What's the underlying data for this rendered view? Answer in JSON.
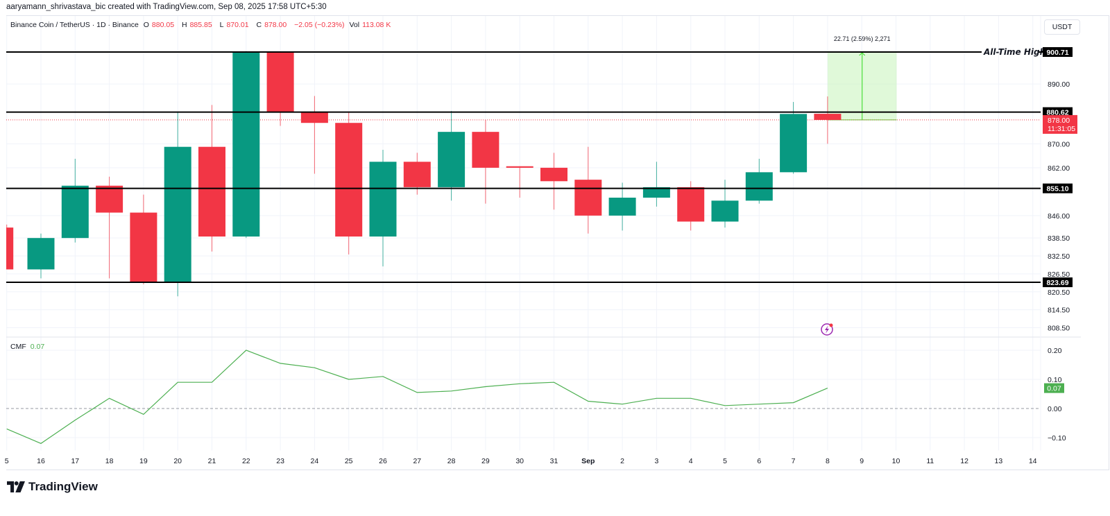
{
  "header": {
    "credit": "aaryamann_shrivastava_bic created with TradingView.com, Sep 08, 2025 17:58 UTC+5:30"
  },
  "legend": {
    "symbol": "Binance Coin / TetherUS · 1D · Binance",
    "open_label": "O",
    "open": "880.05",
    "high_label": "H",
    "high": "885.85",
    "low_label": "L",
    "low": "870.01",
    "close_label": "C",
    "close": "878.00",
    "change": "−2.05 (−0.23%)",
    "vol_label": "Vol",
    "volume": "113.08 K"
  },
  "currency_button": "USDT",
  "annotations": {
    "ath_label": "All-Time High",
    "measure_label": "22.71 (2.59%) 2,271"
  },
  "price_axis": {
    "ticks": [
      "890.00",
      "870.00",
      "862.00",
      "846.00",
      "838.50",
      "832.50",
      "826.50",
      "820.50",
      "814.50",
      "808.50"
    ],
    "levels": [
      "900.71",
      "880.62",
      "855.10",
      "823.69"
    ],
    "current_price": "878.00",
    "countdown": "11:31:05"
  },
  "cmf_axis": {
    "ticks": [
      "0.20",
      "0.10",
      "0.00",
      "−0.10"
    ],
    "current": "0.07"
  },
  "cmf_legend": {
    "name": "CMF",
    "value": "0.07"
  },
  "time_axis": [
    "5",
    "16",
    "17",
    "18",
    "19",
    "20",
    "21",
    "22",
    "23",
    "24",
    "25",
    "26",
    "27",
    "28",
    "29",
    "30",
    "31",
    "Sep",
    "2",
    "3",
    "4",
    "5",
    "6",
    "7",
    "8",
    "9",
    "10",
    "11",
    "12",
    "13",
    "14"
  ],
  "footer": {
    "brand": "TradingView"
  },
  "colors": {
    "up": "#089981",
    "down": "#f23645",
    "cmf_line": "#4caf50",
    "measure_fill": "#ccf5c0",
    "measure_line": "#4cde3a",
    "level_line": "#000000"
  },
  "chart_data": [
    {
      "type": "candlestick",
      "title": "Binance Coin / TetherUS · 1D · Binance",
      "xlabel": "",
      "ylabel": "USDT",
      "ylim": [
        806,
        905
      ],
      "categories": [
        "Aug 15",
        "Aug 16",
        "Aug 17",
        "Aug 18",
        "Aug 19",
        "Aug 20",
        "Aug 21",
        "Aug 22",
        "Aug 23",
        "Aug 24",
        "Aug 25",
        "Aug 26",
        "Aug 27",
        "Aug 28",
        "Aug 29",
        "Aug 30",
        "Aug 31",
        "Sep 1",
        "Sep 2",
        "Sep 3",
        "Sep 4",
        "Sep 5",
        "Sep 6",
        "Sep 7",
        "Sep 8"
      ],
      "ohlc": [
        [
          842,
          843,
          828,
          828
        ],
        [
          828,
          840,
          825,
          838.5
        ],
        [
          838.5,
          865,
          837,
          856
        ],
        [
          856,
          859,
          825,
          847
        ],
        [
          847,
          853,
          823,
          823.7
        ],
        [
          823.7,
          880.6,
          819,
          869
        ],
        [
          869,
          883,
          834,
          839
        ],
        [
          839,
          901,
          838.5,
          900.7
        ],
        [
          900.7,
          900.7,
          876,
          880.6
        ],
        [
          880.6,
          886,
          860,
          877
        ],
        [
          877,
          880.6,
          833,
          839
        ],
        [
          839,
          868,
          829,
          864
        ],
        [
          864,
          867,
          853,
          855.5
        ],
        [
          855.5,
          881,
          851,
          874
        ],
        [
          874,
          878,
          850,
          862
        ],
        [
          862.5,
          862.5,
          852,
          862
        ],
        [
          862,
          867,
          848,
          857.5
        ],
        [
          858,
          869,
          840,
          846
        ],
        [
          846,
          857,
          841,
          852
        ],
        [
          852,
          864,
          849,
          855.5
        ],
        [
          855.5,
          857.5,
          841,
          844
        ],
        [
          844,
          858,
          842,
          851
        ],
        [
          851,
          865,
          850,
          860.5
        ],
        [
          860.5,
          884,
          860,
          880
        ],
        [
          880.05,
          885.85,
          870.01,
          878.0
        ]
      ],
      "horizontal_levels": [
        {
          "value": 900.71,
          "label": "All-Time High"
        },
        {
          "value": 880.62
        },
        {
          "value": 855.1
        },
        {
          "value": 823.69
        }
      ],
      "measure": {
        "from": 878.0,
        "to": 900.71,
        "change": 22.71,
        "percent": 2.59,
        "ticks": 2271,
        "x_from": "Sep 8",
        "x_to": "Sep 10"
      }
    },
    {
      "type": "line",
      "title": "CMF",
      "ylim": [
        -0.15,
        0.25
      ],
      "categories": [
        "Aug 15",
        "Aug 16",
        "Aug 17",
        "Aug 18",
        "Aug 19",
        "Aug 20",
        "Aug 21",
        "Aug 22",
        "Aug 23",
        "Aug 24",
        "Aug 25",
        "Aug 26",
        "Aug 27",
        "Aug 28",
        "Aug 29",
        "Aug 30",
        "Aug 31",
        "Sep 1",
        "Sep 2",
        "Sep 3",
        "Sep 4",
        "Sep 5",
        "Sep 6",
        "Sep 7",
        "Sep 8"
      ],
      "values": [
        -0.07,
        -0.12,
        -0.04,
        0.035,
        -0.02,
        0.09,
        0.09,
        0.2,
        0.155,
        0.14,
        0.1,
        0.11,
        0.055,
        0.06,
        0.075,
        0.085,
        0.09,
        0.025,
        0.015,
        0.035,
        0.035,
        0.01,
        0.015,
        0.02,
        0.07
      ],
      "reference_line": 0
    }
  ]
}
